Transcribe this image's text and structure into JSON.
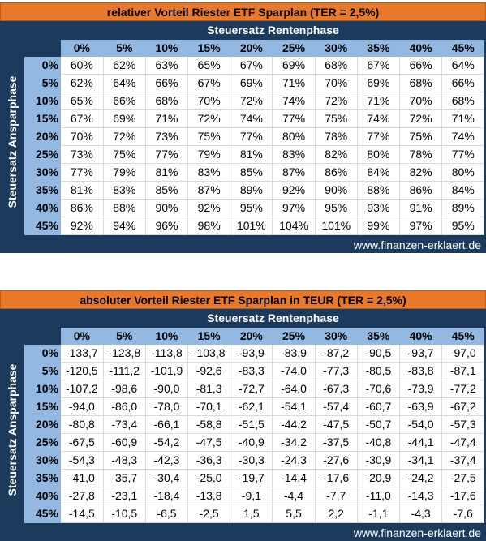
{
  "table1": {
    "title": "relativer Vorteil Riester ETF Sparplan (TER = 2,5%)",
    "col_axis_label": "Steuersatz Rentenphase",
    "row_axis_label": "Steuersatz Ansparphase",
    "columns": [
      "0%",
      "5%",
      "10%",
      "15%",
      "20%",
      "25%",
      "30%",
      "35%",
      "40%",
      "45%"
    ],
    "rows": [
      "0%",
      "5%",
      "10%",
      "15%",
      "20%",
      "25%",
      "30%",
      "35%",
      "40%",
      "45%"
    ],
    "values": [
      [
        "60%",
        "62%",
        "63%",
        "65%",
        "67%",
        "69%",
        "68%",
        "67%",
        "66%",
        "64%"
      ],
      [
        "62%",
        "64%",
        "66%",
        "67%",
        "69%",
        "71%",
        "70%",
        "69%",
        "68%",
        "66%"
      ],
      [
        "65%",
        "66%",
        "68%",
        "70%",
        "72%",
        "74%",
        "72%",
        "71%",
        "70%",
        "68%"
      ],
      [
        "67%",
        "69%",
        "71%",
        "72%",
        "74%",
        "77%",
        "75%",
        "74%",
        "72%",
        "71%"
      ],
      [
        "70%",
        "72%",
        "73%",
        "75%",
        "77%",
        "80%",
        "78%",
        "77%",
        "75%",
        "74%"
      ],
      [
        "73%",
        "75%",
        "77%",
        "79%",
        "81%",
        "83%",
        "82%",
        "80%",
        "78%",
        "77%"
      ],
      [
        "77%",
        "79%",
        "81%",
        "83%",
        "85%",
        "87%",
        "86%",
        "84%",
        "82%",
        "80%"
      ],
      [
        "81%",
        "83%",
        "85%",
        "87%",
        "89%",
        "92%",
        "90%",
        "88%",
        "86%",
        "84%"
      ],
      [
        "86%",
        "88%",
        "90%",
        "92%",
        "95%",
        "97%",
        "95%",
        "93%",
        "91%",
        "89%"
      ],
      [
        "92%",
        "94%",
        "96%",
        "98%",
        "101%",
        "104%",
        "101%",
        "99%",
        "97%",
        "95%"
      ]
    ],
    "credit": "www.finanzen-erklaert.de"
  },
  "table2": {
    "title": "absoluter Vorteil Riester ETF Sparplan in TEUR (TER = 2,5%)",
    "col_axis_label": "Steuersatz Rentenphase",
    "row_axis_label": "Steuersatz Ansparphase",
    "columns": [
      "0%",
      "5%",
      "10%",
      "15%",
      "20%",
      "25%",
      "30%",
      "35%",
      "40%",
      "45%"
    ],
    "rows": [
      "0%",
      "5%",
      "10%",
      "15%",
      "20%",
      "25%",
      "30%",
      "35%",
      "40%",
      "45%"
    ],
    "values": [
      [
        "-133,7",
        "-123,8",
        "-113,8",
        "-103,8",
        "-93,9",
        "-83,9",
        "-87,2",
        "-90,5",
        "-93,7",
        "-97,0"
      ],
      [
        "-120,5",
        "-111,2",
        "-101,9",
        "-92,6",
        "-83,3",
        "-74,0",
        "-77,3",
        "-80,5",
        "-83,8",
        "-87,1"
      ],
      [
        "-107,2",
        "-98,6",
        "-90,0",
        "-81,3",
        "-72,7",
        "-64,0",
        "-67,3",
        "-70,6",
        "-73,9",
        "-77,2"
      ],
      [
        "-94,0",
        "-86,0",
        "-78,0",
        "-70,1",
        "-62,1",
        "-54,1",
        "-57,4",
        "-60,7",
        "-63,9",
        "-67,2"
      ],
      [
        "-80,8",
        "-73,4",
        "-66,1",
        "-58,8",
        "-51,5",
        "-44,2",
        "-47,5",
        "-50,7",
        "-54,0",
        "-57,3"
      ],
      [
        "-67,5",
        "-60,9",
        "-54,2",
        "-47,5",
        "-40,9",
        "-34,2",
        "-37,5",
        "-40,8",
        "-44,1",
        "-47,4"
      ],
      [
        "-54,3",
        "-48,3",
        "-42,3",
        "-36,3",
        "-30,3",
        "-24,3",
        "-27,6",
        "-30,9",
        "-34,1",
        "-37,4"
      ],
      [
        "-41,0",
        "-35,7",
        "-30,4",
        "-25,0",
        "-19,7",
        "-14,4",
        "-17,6",
        "-20,9",
        "-24,2",
        "-27,5"
      ],
      [
        "-27,8",
        "-23,1",
        "-18,4",
        "-13,8",
        "-9,1",
        "-4,4",
        "-7,7",
        "-11,0",
        "-14,3",
        "-17,6"
      ],
      [
        "-14,5",
        "-10,5",
        "-6,5",
        "-2,5",
        "1,5",
        "5,5",
        "2,2",
        "-1,1",
        "-4,3",
        "-7,6"
      ]
    ],
    "credit": "www.finanzen-erklaert.de"
  },
  "colors": {
    "title_bg": "#e8792a",
    "panel_bg": "#1c3a5c",
    "header_bg": "#93b9e3",
    "cell_bg": "#ffffff"
  }
}
